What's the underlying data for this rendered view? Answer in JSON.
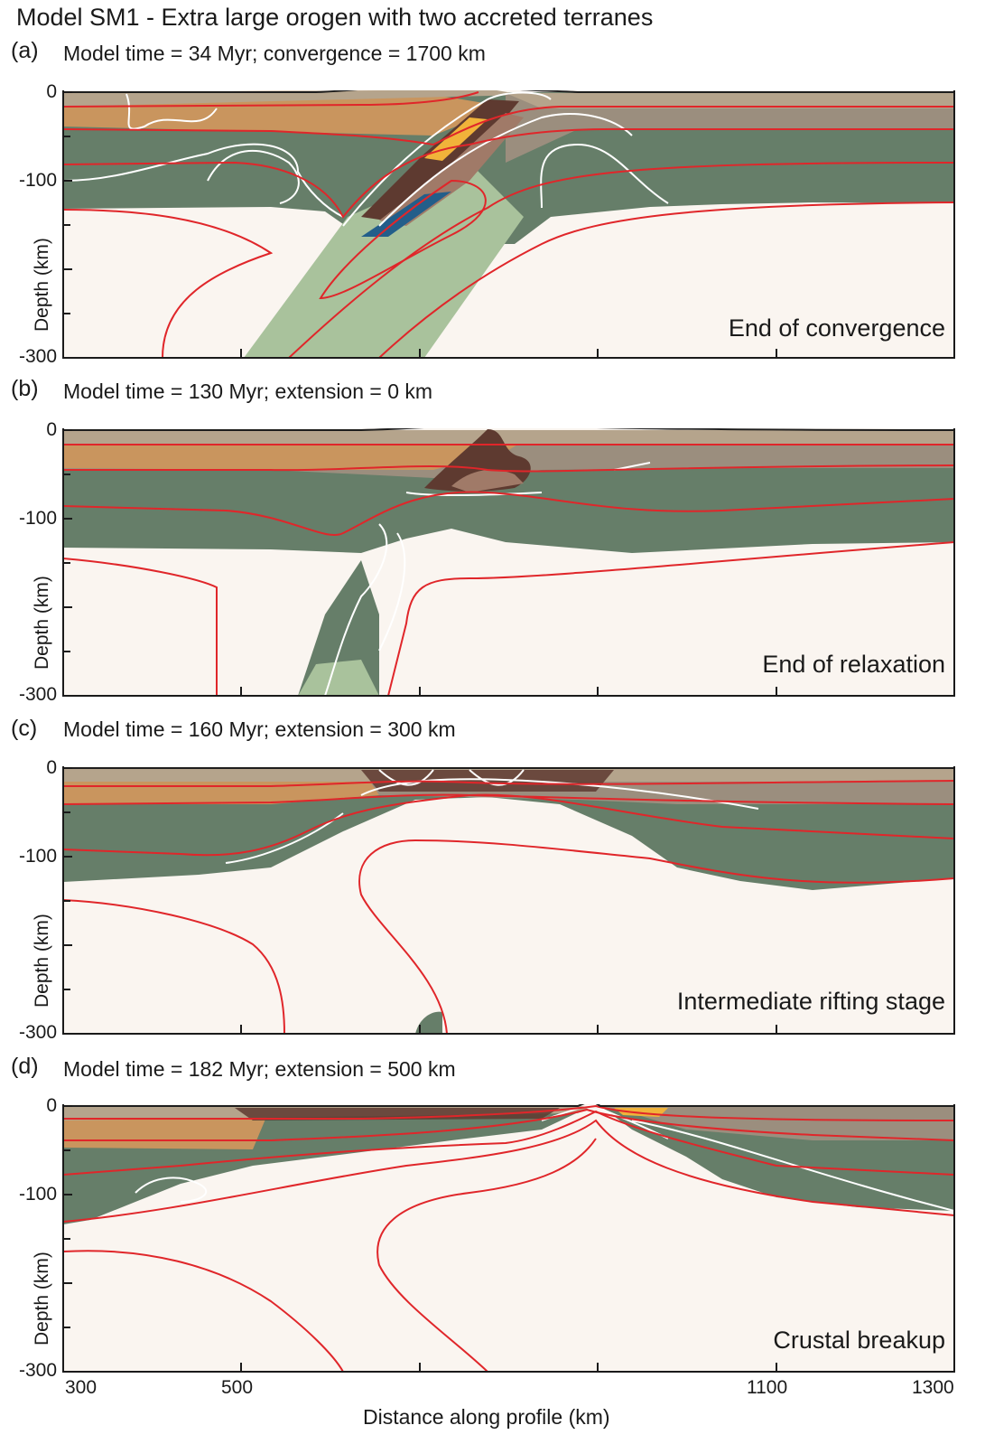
{
  "title": "Model SM1 - Extra large orogen with two accreted terranes",
  "x_axis": {
    "label": "Distance along profile (km)",
    "tick_labels": [
      "300",
      "500",
      "1100",
      "1300"
    ],
    "range_km": [
      300,
      1300
    ]
  },
  "y_axis": {
    "label": "Depth (km)",
    "tick_labels": [
      "0",
      "-100",
      "-300"
    ],
    "range_km": [
      -300,
      0
    ]
  },
  "colors": {
    "upper_crust": "#b5a48c",
    "middle_crust": "#c9955e",
    "lower_crust": "#9b8e7e",
    "lithospheric_mantle": "#667e69",
    "slab_mantle": "#a9c29c",
    "asthenosphere": "#faf5f0",
    "isotherm": "#e0262a",
    "strain": "#ffffff",
    "terrane_dark": "#5e3a30",
    "terrane_light": "#a07a68",
    "sediment": "#f1b33a",
    "oceanic": "#235e8a",
    "topography": "#1e1e1e"
  },
  "panels": [
    {
      "letter": "(a)",
      "subtitle": "Model time = 34 Myr; convergence = 1700 km",
      "stage": "End of convergence"
    },
    {
      "letter": "(b)",
      "subtitle": "Model time = 130 Myr; extension = 0 km",
      "stage": "End of relaxation"
    },
    {
      "letter": "(c)",
      "subtitle": "Model time = 160 Myr; extension = 300 km",
      "stage": "Intermediate rifting stage"
    },
    {
      "letter": "(d)",
      "subtitle": "Model time = 182 Myr; extension = 500 km",
      "stage": "Crustal breakup"
    }
  ]
}
